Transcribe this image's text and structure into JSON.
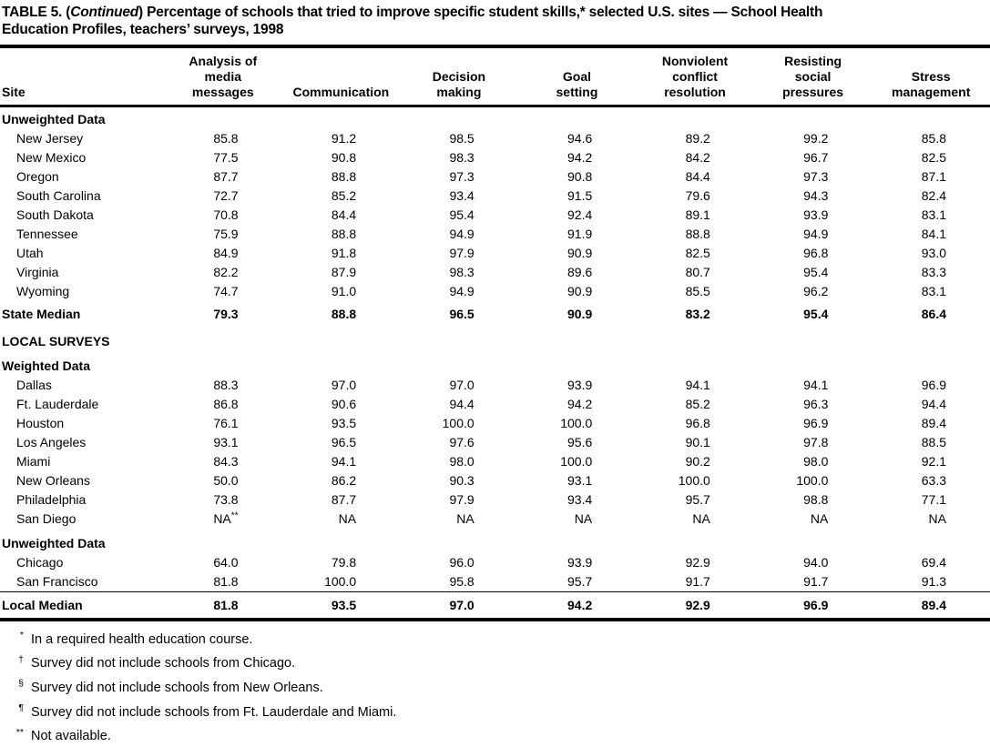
{
  "title": {
    "prefix": "TABLE 5. (",
    "continued": "Continued",
    "after_continued": ") Percentage of schools that tried to improve specific student skills,* selected U.S. sites — School Health",
    "line2": "Education Profiles, teachers’ surveys, 1998"
  },
  "table": {
    "site_header": "Site",
    "columns": [
      "Analysis of\nmedia\nmessages",
      "Communication",
      "Decision\nmaking",
      "Goal\nsetting",
      "Nonviolent\nconflict\nresolution",
      "Resisting\nsocial\npressures",
      "Stress\nmanagement"
    ],
    "sections": [
      {
        "type": "section",
        "label": "Unweighted Data"
      },
      {
        "type": "row",
        "site": "New Jersey",
        "values": [
          "85.8",
          "91.2",
          "98.5",
          "94.6",
          "89.2",
          "99.2",
          "85.8"
        ]
      },
      {
        "type": "row",
        "site": "New Mexico",
        "values": [
          "77.5",
          "90.8",
          "98.3",
          "94.2",
          "84.2",
          "96.7",
          "82.5"
        ]
      },
      {
        "type": "row",
        "site": "Oregon",
        "values": [
          "87.7",
          "88.8",
          "97.3",
          "90.8",
          "84.4",
          "97.3",
          "87.1"
        ]
      },
      {
        "type": "row",
        "site": "South Carolina",
        "values": [
          "72.7",
          "85.2",
          "93.4",
          "91.5",
          "79.6",
          "94.3",
          "82.4"
        ]
      },
      {
        "type": "row",
        "site": "South Dakota",
        "values": [
          "70.8",
          "84.4",
          "95.4",
          "92.4",
          "89.1",
          "93.9",
          "83.1"
        ]
      },
      {
        "type": "row",
        "site": "Tennessee",
        "values": [
          "75.9",
          "88.8",
          "94.9",
          "91.9",
          "88.8",
          "94.9",
          "84.1"
        ]
      },
      {
        "type": "row",
        "site": "Utah",
        "values": [
          "84.9",
          "91.8",
          "97.9",
          "90.9",
          "82.5",
          "96.8",
          "93.0"
        ]
      },
      {
        "type": "row",
        "site": "Virginia",
        "values": [
          "82.2",
          "87.9",
          "98.3",
          "89.6",
          "80.7",
          "95.4",
          "83.3"
        ]
      },
      {
        "type": "row",
        "site": "Wyoming",
        "values": [
          "74.7",
          "91.0",
          "94.9",
          "90.9",
          "85.5",
          "96.2",
          "83.1"
        ]
      },
      {
        "type": "total",
        "site": "State Median",
        "values": [
          "79.3",
          "88.8",
          "96.5",
          "90.9",
          "83.2",
          "95.4",
          "86.4"
        ]
      },
      {
        "type": "section",
        "label": "LOCAL SURVEYS",
        "space": true
      },
      {
        "type": "section",
        "label": "Weighted Data",
        "space": true
      },
      {
        "type": "row",
        "site": "Dallas",
        "values": [
          "88.3",
          "97.0",
          "97.0",
          "93.9",
          "94.1",
          "94.1",
          "96.9"
        ]
      },
      {
        "type": "row",
        "site": "Ft. Lauderdale",
        "values": [
          "86.8",
          "90.6",
          "94.4",
          "94.2",
          "85.2",
          "96.3",
          "94.4"
        ]
      },
      {
        "type": "row",
        "site": "Houston",
        "values": [
          "76.1",
          "93.5",
          "100.0",
          "100.0",
          "96.8",
          "96.9",
          "89.4"
        ]
      },
      {
        "type": "row",
        "site": "Los Angeles",
        "values": [
          "93.1",
          "96.5",
          "97.6",
          "95.6",
          "90.1",
          "97.8",
          "88.5"
        ]
      },
      {
        "type": "row",
        "site": "Miami",
        "values": [
          "84.3",
          "94.1",
          "98.0",
          "100.0",
          "90.2",
          "98.0",
          "92.1"
        ]
      },
      {
        "type": "row",
        "site": "New Orleans",
        "values": [
          "50.0",
          "86.2",
          "90.3",
          "93.1",
          "100.0",
          "100.0",
          "63.3"
        ]
      },
      {
        "type": "row",
        "site": "Philadelphia",
        "values": [
          "73.8",
          "87.7",
          "97.9",
          "93.4",
          "95.7",
          "98.8",
          "77.1"
        ]
      },
      {
        "type": "row",
        "site": "San Diego",
        "values": [
          "NA**",
          "NA",
          "NA",
          "NA",
          "NA",
          "NA",
          "NA"
        ]
      },
      {
        "type": "section",
        "label": "Unweighted Data",
        "space": true
      },
      {
        "type": "row",
        "site": "Chicago",
        "values": [
          "64.0",
          "79.8",
          "96.0",
          "93.9",
          "92.9",
          "94.0",
          "69.4"
        ]
      },
      {
        "type": "row",
        "site": "San Francisco",
        "values": [
          "81.8",
          "100.0",
          "95.8",
          "95.7",
          "91.7",
          "91.7",
          "91.3"
        ]
      },
      {
        "type": "total",
        "site": "Local Median",
        "rule_above": true,
        "values": [
          "81.8",
          "93.5",
          "97.0",
          "94.2",
          "92.9",
          "96.9",
          "89.4"
        ]
      }
    ]
  },
  "footnotes": [
    {
      "marker": "*",
      "text": "In a required health education course."
    },
    {
      "marker": "†",
      "text": "Survey did not include schools from Chicago."
    },
    {
      "marker": "§",
      "text": "Survey did not include schools from New Orleans."
    },
    {
      "marker": "¶",
      "text": "Survey did not include schools from Ft. Lauderdale and Miami."
    },
    {
      "marker": "**",
      "text": "Not available."
    }
  ]
}
